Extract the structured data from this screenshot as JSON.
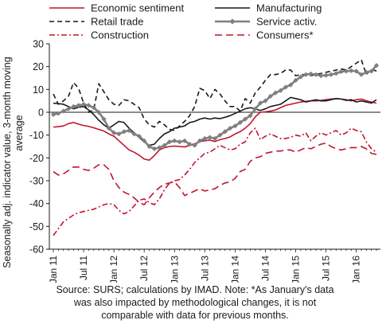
{
  "chart_data": {
    "type": "line",
    "title": "",
    "ylabel_lines": [
      "Seasonally adj. indicator value, 3-month moving",
      "average"
    ],
    "ylim": [
      -60,
      30
    ],
    "yticks": [
      30,
      20,
      10,
      0,
      -10,
      -20,
      -30,
      -40,
      -50,
      -60
    ],
    "x_start": "Jan 11",
    "n_months": 65,
    "xtick_labels": [
      {
        "month": 0,
        "label": "Jan 11"
      },
      {
        "month": 6,
        "label": "Jul 11"
      },
      {
        "month": 12,
        "label": "Jan 12"
      },
      {
        "month": 18,
        "label": "Jul 12"
      },
      {
        "month": 24,
        "label": "Jan 13"
      },
      {
        "month": 30,
        "label": "Jul 13"
      },
      {
        "month": 36,
        "label": "Jan 14"
      },
      {
        "month": 42,
        "label": "Jul 14"
      },
      {
        "month": 48,
        "label": "Jan 15"
      },
      {
        "month": 54,
        "label": "Jul 15"
      },
      {
        "month": 60,
        "label": "Jan 16"
      }
    ],
    "grid": false,
    "legend_position": "top",
    "series": [
      {
        "name": "Economic sentiment",
        "color": "#c0152f",
        "style": "solid",
        "values": [
          -6.5,
          -6.3,
          -6.0,
          -5.0,
          -4.5,
          -5.2,
          -5.8,
          -6.2,
          -6.8,
          -7.5,
          -8.2,
          -9.5,
          -10.5,
          -12.5,
          -14.5,
          -16.5,
          -17.5,
          -18.8,
          -20.5,
          -21.0,
          -19.0,
          -16.5,
          -15.5,
          -15.0,
          -14.8,
          -15.0,
          -15.2,
          -14.5,
          -13.8,
          -12.8,
          -12.5,
          -12.2,
          -12.8,
          -12.0,
          -11.5,
          -10.8,
          -9.5,
          -8.5,
          -7.0,
          -5.0,
          -2.0,
          0.0,
          0.2,
          0.5,
          1.0,
          2.0,
          3.0,
          3.5,
          4.0,
          4.5,
          4.8,
          5.0,
          5.0,
          5.2,
          5.5,
          5.8,
          6.0,
          5.8,
          5.5,
          5.0,
          5.5,
          5.8,
          5.0,
          4.5,
          4.0
        ]
      },
      {
        "name": "Manufacturing",
        "color": "#1a1a1a",
        "style": "solid",
        "values": [
          4.0,
          3.8,
          3.5,
          2.5,
          1.5,
          2.2,
          2.5,
          1.0,
          -1.0,
          -3.5,
          -5.5,
          -7.0,
          -5.5,
          -4.0,
          -4.5,
          -7.0,
          -9.0,
          -11.0,
          -13.0,
          -14.5,
          -14.0,
          -11.5,
          -9.5,
          -8.5,
          -7.0,
          -6.5,
          -6.0,
          -4.5,
          -4.0,
          -3.0,
          -2.5,
          -3.0,
          -2.5,
          -2.8,
          -2.2,
          -1.5,
          -0.5,
          0.5,
          1.5,
          2.0,
          1.5,
          0.8,
          1.5,
          2.5,
          3.0,
          3.5,
          5.0,
          6.5,
          6.0,
          5.5,
          4.5,
          5.0,
          5.5,
          5.0,
          5.0,
          5.5,
          6.0,
          5.8,
          5.2,
          5.5,
          4.5,
          5.0,
          4.5,
          4.0,
          5.5
        ]
      },
      {
        "name": "Retail trade",
        "color": "#1a1a1a",
        "style": "dashed",
        "values": [
          8.0,
          3.5,
          5.0,
          7.0,
          13.0,
          10.5,
          4.0,
          0.0,
          1.0,
          12.5,
          9.0,
          5.5,
          3.5,
          3.0,
          5.5,
          5.0,
          3.5,
          2.0,
          -3.0,
          -5.5,
          -6.5,
          -4.0,
          -5.5,
          -7.5,
          -8.0,
          -6.0,
          -4.0,
          -1.5,
          2.5,
          10.5,
          9.5,
          6.0,
          10.0,
          8.0,
          5.0,
          2.5,
          2.5,
          0.5,
          6.0,
          4.0,
          8.5,
          11.0,
          14.0,
          16.5,
          16.5,
          17.0,
          18.5,
          18.5,
          16.0,
          16.5,
          16.5,
          16.0,
          16.5,
          17.0,
          17.5,
          18.0,
          18.5,
          19.0,
          18.5,
          20.0,
          21.5,
          23.0,
          16.5,
          19.0,
          18.0
        ]
      },
      {
        "name": "Service activ.",
        "color": "#7f7f7f",
        "style": "solid-diamond",
        "values": [
          -1.0,
          -0.5,
          0.5,
          1.5,
          2.5,
          3.0,
          3.5,
          3.0,
          2.0,
          0.0,
          -3.0,
          -7.0,
          -9.0,
          -9.5,
          -8.5,
          -8.0,
          -9.5,
          -10.5,
          -12.5,
          -15.0,
          -16.0,
          -15.5,
          -14.5,
          -13.0,
          -12.5,
          -13.0,
          -12.5,
          -14.0,
          -14.5,
          -12.5,
          -11.5,
          -11.0,
          -11.5,
          -10.0,
          -8.5,
          -7.0,
          -6.0,
          -4.5,
          -3.0,
          -1.5,
          1.5,
          4.0,
          5.0,
          7.0,
          8.5,
          9.5,
          11.0,
          12.0,
          14.0,
          15.5,
          16.5,
          16.8,
          16.5,
          16.0,
          16.2,
          16.5,
          17.0,
          17.8,
          18.0,
          18.2,
          18.0,
          16.5,
          17.5,
          18.0,
          20.5
        ]
      },
      {
        "name": "Construction",
        "color": "#c0152f",
        "style": "dashdot",
        "values": [
          -54.0,
          -51.0,
          -48.0,
          -46.5,
          -45.0,
          -44.0,
          -43.5,
          -43.0,
          -42.5,
          -41.5,
          -40.5,
          -40.0,
          -40.5,
          -43.0,
          -44.5,
          -43.5,
          -41.0,
          -38.5,
          -38.0,
          -39.5,
          -40.5,
          -38.0,
          -34.0,
          -31.0,
          -30.0,
          -29.5,
          -27.5,
          -25.0,
          -22.0,
          -20.0,
          -18.0,
          -17.5,
          -16.0,
          -14.5,
          -15.5,
          -16.5,
          -16.0,
          -14.0,
          -13.0,
          -9.0,
          -7.0,
          -12.0,
          -10.5,
          -9.5,
          -10.5,
          -11.5,
          -11.5,
          -11.0,
          -10.0,
          -10.5,
          -9.0,
          -12.5,
          -10.5,
          -9.0,
          -10.0,
          -9.0,
          -8.0,
          -10.0,
          -9.0,
          -7.0,
          -8.0,
          -8.5,
          -13.0,
          -16.0,
          -17.5
        ]
      },
      {
        "name": "Consumers*",
        "color": "#c0152f",
        "style": "longdash",
        "values": [
          -26.0,
          -27.5,
          -27.0,
          -25.5,
          -24.0,
          -24.0,
          -25.0,
          -25.5,
          -24.5,
          -23.0,
          -23.0,
          -25.0,
          -30.0,
          -33.0,
          -35.0,
          -36.0,
          -37.5,
          -39.5,
          -40.5,
          -37.5,
          -35.0,
          -33.0,
          -31.5,
          -31.0,
          -30.5,
          -33.0,
          -36.5,
          -35.5,
          -34.5,
          -33.5,
          -34.5,
          -34.0,
          -33.5,
          -32.0,
          -31.0,
          -30.5,
          -29.0,
          -26.0,
          -25.0,
          -21.5,
          -20.0,
          -19.5,
          -18.0,
          -17.5,
          -17.0,
          -17.0,
          -16.5,
          -16.5,
          -17.5,
          -16.5,
          -15.5,
          -16.0,
          -15.0,
          -14.0,
          -13.5,
          -15.0,
          -16.0,
          -16.5,
          -16.0,
          -15.5,
          -15.5,
          -15.0,
          -16.0,
          -18.0,
          -18.5
        ]
      }
    ]
  },
  "source_lines": [
    "Source: SURS; calculations by IMAD. Note: *As January's data",
    "was also impacted by methodological changes, it is not",
    "comparable with data for previous months."
  ]
}
